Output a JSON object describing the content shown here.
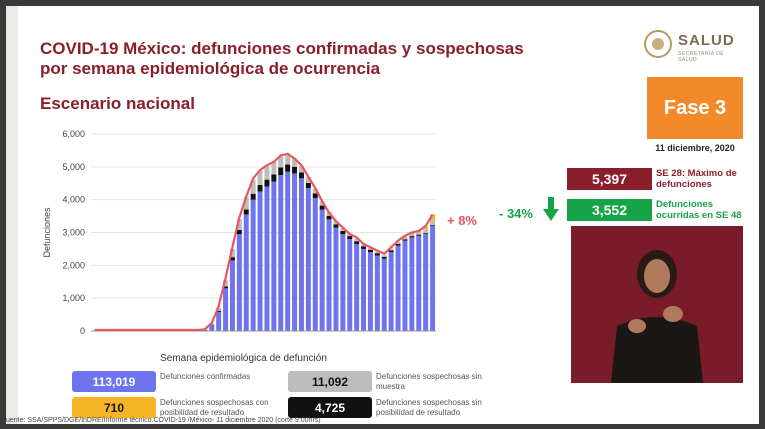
{
  "header": {
    "title_line1": "COVID-19 México: defunciones confirmadas y sospechosas",
    "title_line2": "por semana epidemiológica de ocurrencia",
    "subtitle": "Escenario nacional"
  },
  "logo": {
    "text": "SALUD",
    "subtext": "SECRETARÍA DE SALUD"
  },
  "phase": {
    "label": "Fase 3",
    "date": "11 diciembre, 2020"
  },
  "stats": {
    "max_value": "5,397",
    "max_label": "SE 28: Máximo de defunciones",
    "se48_value": "3,552",
    "se48_label": "Defunciones ocurridas en SE 48",
    "pct_change": "- 34%",
    "pct_recent": "+ 8%"
  },
  "legend": {
    "confirmed_value": "113,019",
    "confirmed_label": "Defunciones confirmadas",
    "no_sample_value": "11,092",
    "no_sample_label": "Defunciones sospechosas sin muestra",
    "possible_value": "710",
    "possible_label": "Defunciones sospechosas con posibilidad de resultado",
    "no_possible_value": "4,725",
    "no_possible_label": "Defunciones sospechosas sin posibilidad de resultado"
  },
  "source": "uente: SSA/SPPS/DGE/InDRE/Informe técnico.COVID-19 /México- 11 diciembre 2020 (corte 9:00hrs)",
  "colors": {
    "confirmed": "#6e74ee",
    "no_sample": "#bdbdbd",
    "possible": "#f6b524",
    "no_possible": "#111111",
    "total_line": "#e8575f"
  },
  "chart_data": {
    "type": "bar",
    "stacked": true,
    "xlabel": "Semana epidemiológica de defunción",
    "ylabel": "Defunciones",
    "ylim": [
      0,
      6000
    ],
    "yticks": [
      0,
      1000,
      2000,
      3000,
      4000,
      5000,
      6000
    ],
    "ytick_labels": [
      "0",
      "1,000",
      "2,000",
      "3,000",
      "4,000",
      "5,000",
      "6,000"
    ],
    "grid": true,
    "series": [
      {
        "name": "Defunciones confirmadas",
        "values": [
          0,
          0,
          0,
          0,
          0,
          0,
          0,
          0,
          0,
          0,
          0,
          0,
          0,
          0,
          2,
          5,
          30,
          180,
          580,
          1300,
          2150,
          2950,
          3550,
          4000,
          4250,
          4400,
          4550,
          4750,
          4850,
          4800,
          4650,
          4350,
          4050,
          3700,
          3400,
          3150,
          2950,
          2800,
          2650,
          2500,
          2400,
          2300,
          2200,
          2400,
          2600,
          2750,
          2850,
          2900,
          2950,
          3200
        ]
      },
      {
        "name": "Defunciones sospechosas sin posibilidad de resultado",
        "values": [
          0,
          0,
          0,
          0,
          0,
          0,
          0,
          0,
          0,
          0,
          0,
          0,
          0,
          0,
          0,
          0,
          2,
          10,
          30,
          60,
          100,
          130,
          150,
          180,
          200,
          210,
          220,
          230,
          220,
          200,
          180,
          160,
          140,
          120,
          110,
          100,
          95,
          90,
          85,
          80,
          75,
          70,
          60,
          55,
          50,
          45,
          40,
          35,
          30,
          25
        ]
      },
      {
        "name": "Defunciones sospechosas sin muestra",
        "values": [
          0,
          0,
          0,
          0,
          0,
          0,
          0,
          0,
          0,
          0,
          0,
          0,
          0,
          0,
          1,
          3,
          10,
          40,
          100,
          180,
          250,
          330,
          380,
          420,
          430,
          420,
          380,
          340,
          280,
          250,
          200,
          180,
          150,
          130,
          110,
          100,
          90,
          80,
          70,
          60,
          55,
          50,
          45,
          50,
          60,
          70,
          80,
          90,
          120,
          140
        ]
      },
      {
        "name": "Defunciones sospechosas con posibilidad de resultado",
        "values": [
          0,
          0,
          0,
          0,
          0,
          0,
          0,
          0,
          0,
          0,
          0,
          0,
          0,
          0,
          0,
          0,
          0,
          0,
          0,
          0,
          0,
          0,
          0,
          0,
          0,
          0,
          0,
          0,
          0,
          0,
          0,
          0,
          0,
          0,
          0,
          0,
          0,
          0,
          0,
          0,
          0,
          0,
          0,
          0,
          0,
          10,
          20,
          40,
          80,
          187
        ]
      }
    ],
    "total_line": [
      30,
      30,
      30,
      30,
      30,
      30,
      30,
      30,
      30,
      30,
      30,
      30,
      30,
      30,
      30,
      30,
      50,
      250,
      750,
      1600,
      2550,
      3450,
      4100,
      4650,
      4900,
      5050,
      5150,
      5350,
      5397,
      5250,
      5050,
      4700,
      4350,
      3950,
      3600,
      3350,
      3150,
      2950,
      2850,
      2650,
      2550,
      2450,
      2350,
      2550,
      2750,
      2900,
      3000,
      3050,
      3200,
      3552
    ]
  }
}
